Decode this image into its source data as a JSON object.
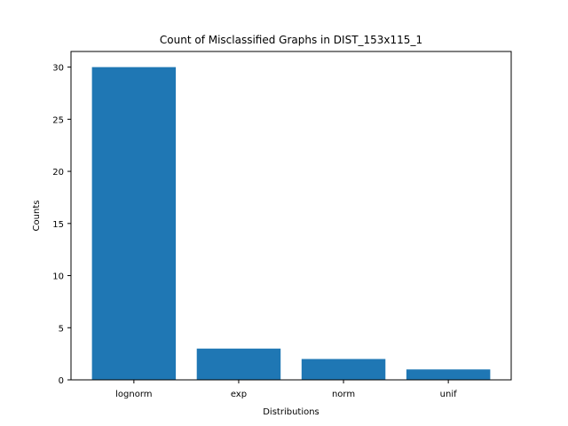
{
  "chart_data": {
    "type": "bar",
    "title": "Count of Misclassified Graphs in DIST_153x115_1",
    "xlabel": "Distributions",
    "ylabel": "Counts",
    "categories": [
      "lognorm",
      "exp",
      "norm",
      "unif"
    ],
    "values": [
      30,
      3,
      2,
      1
    ],
    "ylim": [
      0,
      31.5
    ],
    "yticks": [
      0,
      5,
      10,
      15,
      20,
      25,
      30
    ],
    "grid": false,
    "bar_color": "#1f77b4"
  }
}
